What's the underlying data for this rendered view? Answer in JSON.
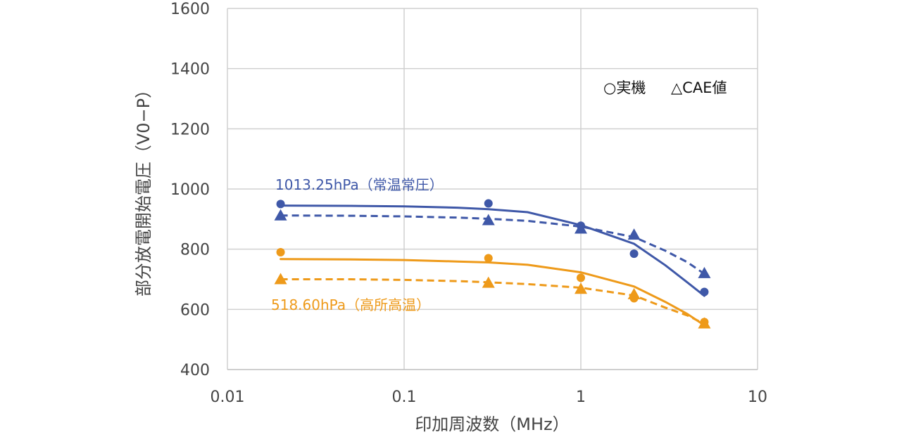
{
  "chart_data": {
    "type": "scatter",
    "title": "",
    "xlabel": "印加周波数（MHz）",
    "ylabel": "部分放電開始電圧（V0−P）",
    "x_scale": "log",
    "xlim": [
      0.01,
      10
    ],
    "ylim": [
      400,
      1600
    ],
    "x_ticks": [
      0.01,
      0.1,
      1,
      10
    ],
    "x_tick_labels": [
      "0.01",
      "0.1",
      "1",
      "10"
    ],
    "y_ticks": [
      400,
      600,
      800,
      1000,
      1200,
      1400,
      1600
    ],
    "y_tick_labels": [
      "400",
      "600",
      "800",
      "1000",
      "1200",
      "1400",
      "1600"
    ],
    "grid": true,
    "legend": {
      "position": "top-right",
      "measured_label": "○実機",
      "cae_label": "△CAE値"
    },
    "series": [
      {
        "name": "1013.25hPa（常温常圧）",
        "color": "#3f58a8",
        "measured": {
          "x": [
            0.02,
            0.3,
            1,
            2,
            5
          ],
          "y": [
            950,
            952,
            878,
            785,
            658
          ]
        },
        "cae": {
          "x": [
            0.02,
            0.3,
            1,
            2,
            5
          ],
          "y": [
            912,
            896,
            868,
            848,
            720
          ]
        },
        "measured_trend": {
          "x": [
            0.02,
            0.05,
            0.1,
            0.2,
            0.3,
            0.5,
            1,
            2,
            3,
            4,
            5
          ],
          "y": [
            945,
            944,
            942,
            938,
            933,
            923,
            880,
            818,
            747,
            690,
            645
          ]
        },
        "cae_trend": {
          "x": [
            0.02,
            0.05,
            0.1,
            0.2,
            0.3,
            0.5,
            1,
            2,
            3,
            4,
            5
          ],
          "y": [
            912,
            911,
            909,
            905,
            901,
            894,
            875,
            840,
            795,
            757,
            718
          ]
        }
      },
      {
        "name": "518.60hPa（高所高温）",
        "color": "#ee9a1a",
        "measured": {
          "x": [
            0.02,
            0.3,
            1,
            2,
            5
          ],
          "y": [
            790,
            770,
            705,
            637,
            558
          ]
        },
        "cae": {
          "x": [
            0.02,
            0.3,
            1,
            2,
            5
          ],
          "y": [
            700,
            688,
            668,
            650,
            553
          ]
        },
        "measured_trend": {
          "x": [
            0.02,
            0.05,
            0.1,
            0.2,
            0.3,
            0.5,
            1,
            2,
            3,
            4,
            5
          ],
          "y": [
            767,
            766,
            764,
            759,
            756,
            748,
            723,
            676,
            625,
            585,
            547
          ]
        },
        "cae_trend": {
          "x": [
            0.02,
            0.05,
            0.1,
            0.2,
            0.3,
            0.5,
            1,
            2,
            3,
            4,
            5
          ],
          "y": [
            700,
            700,
            698,
            694,
            690,
            684,
            672,
            646,
            606,
            580,
            552
          ]
        }
      }
    ]
  }
}
